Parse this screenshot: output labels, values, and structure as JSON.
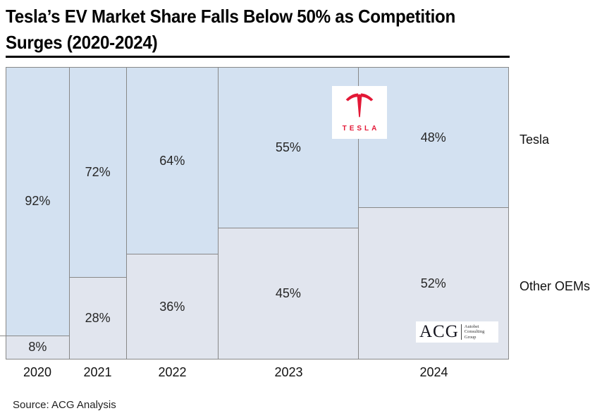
{
  "title": {
    "line1": "Tesla’s EV Market Share Falls Below 50% as Competition",
    "line2": "Surges (2020-2024)"
  },
  "source_text": "Source: ACG Analysis",
  "right_labels": {
    "tesla": "Tesla",
    "others": "Other OEMs"
  },
  "logos": {
    "tesla_wordmark": "TESLA",
    "acg": {
      "main": "ACG",
      "sub_line1": "Autobei",
      "sub_line2": "Consulting",
      "sub_line3": "Group"
    }
  },
  "colors": {
    "tesla_fill": "#D3E1F1",
    "others_fill": "#E1E5EE",
    "border": "#888888",
    "tesla_red": "#E31937",
    "label_text": "#262626"
  },
  "chart_data": {
    "type": "bar",
    "subtype": "marimekko-100pct-stacked",
    "title": "Tesla’s EV Market Share Falls Below 50% as Competition Surges (2020-2024)",
    "categories": [
      "2020",
      "2021",
      "2022",
      "2023",
      "2024"
    ],
    "series": [
      {
        "name": "Tesla",
        "values": [
          92,
          72,
          64,
          55,
          48
        ]
      },
      {
        "name": "Other OEMs",
        "values": [
          8,
          28,
          36,
          45,
          52
        ]
      }
    ],
    "column_width_pct": [
      12.6,
      11.35,
      18.35,
      27.87,
      29.83
    ],
    "value_suffix": "%",
    "ylim": [
      0,
      100
    ],
    "grid": false,
    "legend_position": "right-of-chart",
    "source": "ACG Analysis"
  }
}
